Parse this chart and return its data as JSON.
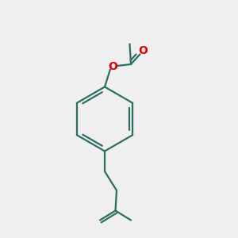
{
  "bg_color": "#efefef",
  "bond_color": "#2d6e62",
  "o_color": "#dd0000",
  "line_width": 1.6,
  "figsize": [
    3.0,
    3.0
  ],
  "dpi": 100
}
